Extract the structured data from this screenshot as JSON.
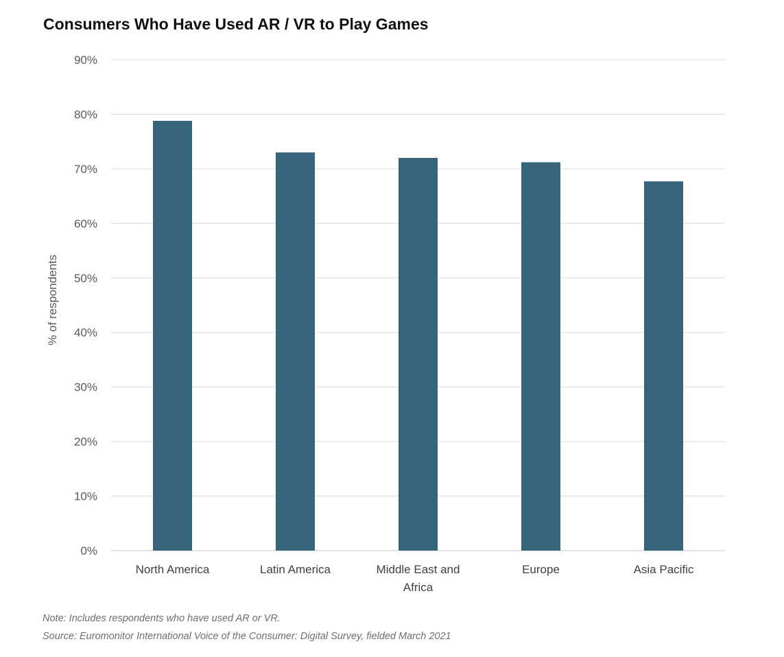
{
  "chart_data": {
    "type": "bar",
    "title": "Consumers Who Have Used AR / VR to Play Games",
    "xlabel": "",
    "ylabel": "% of respondents",
    "categories": [
      "North America",
      "Latin America",
      "Middle East and Africa",
      "Europe",
      "Asia Pacific"
    ],
    "category_label_lines": [
      [
        "North America"
      ],
      [
        "Latin America"
      ],
      [
        "Middle East and",
        "Africa"
      ],
      [
        "Europe"
      ],
      [
        "Asia Pacific"
      ]
    ],
    "values": [
      78.8,
      73.0,
      72.0,
      71.2,
      67.7
    ],
    "ylim": [
      0,
      90
    ],
    "yticks": [
      0,
      10,
      20,
      30,
      40,
      50,
      60,
      70,
      80,
      90
    ],
    "ytick_labels": [
      "0%",
      "10%",
      "20%",
      "30%",
      "40%",
      "50%",
      "60%",
      "70%",
      "80%",
      "90%"
    ],
    "grid": true,
    "bar_color": "#36647b"
  },
  "notes": {
    "note": "Note: Includes respondents who have used AR or VR.",
    "source": "Source: Euromonitor International Voice of the Consumer: Digital Survey, fielded March 2021"
  }
}
